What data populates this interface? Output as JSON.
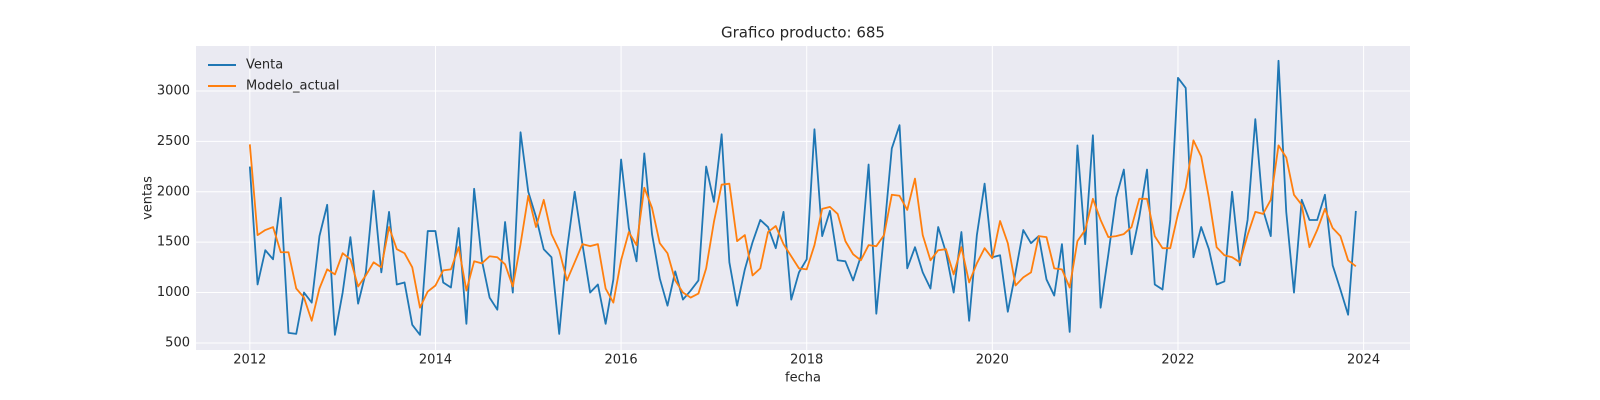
{
  "chart_data": {
    "type": "line",
    "title": "Grafico producto: 685",
    "x_label": "fecha",
    "y_label": "ventas",
    "x": [
      "2012-01",
      "2012-02",
      "2012-03",
      "2012-04",
      "2012-05",
      "2012-06",
      "2012-07",
      "2012-08",
      "2012-09",
      "2012-10",
      "2012-11",
      "2012-12",
      "2013-01",
      "2013-02",
      "2013-03",
      "2013-04",
      "2013-05",
      "2013-06",
      "2013-07",
      "2013-08",
      "2013-09",
      "2013-10",
      "2013-11",
      "2013-12",
      "2014-01",
      "2014-02",
      "2014-03",
      "2014-04",
      "2014-05",
      "2014-06",
      "2014-07",
      "2014-08",
      "2014-09",
      "2014-10",
      "2014-11",
      "2014-12",
      "2015-01",
      "2015-02",
      "2015-03",
      "2015-04",
      "2015-05",
      "2015-06",
      "2015-07",
      "2015-08",
      "2015-09",
      "2015-10",
      "2015-11",
      "2015-12",
      "2016-01",
      "2016-02",
      "2016-03",
      "2016-04",
      "2016-05",
      "2016-06",
      "2016-07",
      "2016-08",
      "2016-09",
      "2016-10",
      "2016-11",
      "2016-12",
      "2017-01",
      "2017-02",
      "2017-03",
      "2017-04",
      "2017-05",
      "2017-06",
      "2017-07",
      "2017-08",
      "2017-09",
      "2017-10",
      "2017-11",
      "2017-12",
      "2018-01",
      "2018-02",
      "2018-03",
      "2018-04",
      "2018-05",
      "2018-06",
      "2018-07",
      "2018-08",
      "2018-09",
      "2018-10",
      "2018-11",
      "2018-12",
      "2019-01",
      "2019-02",
      "2019-03",
      "2019-04",
      "2019-05",
      "2019-06",
      "2019-07",
      "2019-08",
      "2019-09",
      "2019-10",
      "2019-11",
      "2019-12",
      "2020-01",
      "2020-02",
      "2020-03",
      "2020-04",
      "2020-05",
      "2020-06",
      "2020-07",
      "2020-08",
      "2020-09",
      "2020-10",
      "2020-11",
      "2020-12",
      "2021-01",
      "2021-02",
      "2021-03",
      "2021-04",
      "2021-05",
      "2021-06",
      "2021-07",
      "2021-08",
      "2021-09",
      "2021-10",
      "2021-11",
      "2021-12",
      "2022-01",
      "2022-02",
      "2022-03",
      "2022-04",
      "2022-05",
      "2022-06",
      "2022-07",
      "2022-08",
      "2022-09",
      "2022-10",
      "2022-11",
      "2022-12",
      "2023-01",
      "2023-02",
      "2023-03",
      "2023-04",
      "2023-05",
      "2023-06",
      "2023-07",
      "2023-08",
      "2023-09",
      "2023-10",
      "2023-11",
      "2023-12"
    ],
    "series": [
      {
        "name": "Venta",
        "color": "#1f77b4",
        "values": [
          2250,
          1080,
          1420,
          1330,
          1940,
          600,
          590,
          1000,
          900,
          1560,
          1870,
          580,
          1000,
          1550,
          890,
          1200,
          2010,
          1200,
          1800,
          1080,
          1100,
          680,
          580,
          1610,
          1610,
          1100,
          1050,
          1640,
          690,
          2030,
          1320,
          950,
          830,
          1700,
          1000,
          2590,
          2000,
          1750,
          1430,
          1350,
          590,
          1420,
          2000,
          1480,
          1000,
          1080,
          690,
          1130,
          2320,
          1640,
          1310,
          2380,
          1580,
          1140,
          870,
          1210,
          930,
          1020,
          1120,
          2250,
          1900,
          2570,
          1300,
          870,
          1230,
          1500,
          1720,
          1650,
          1440,
          1800,
          930,
          1200,
          1330,
          2620,
          1560,
          1810,
          1320,
          1310,
          1120,
          1360,
          2270,
          790,
          1590,
          2430,
          2660,
          1240,
          1450,
          1200,
          1040,
          1650,
          1400,
          1000,
          1600,
          720,
          1570,
          2080,
          1350,
          1370,
          810,
          1200,
          1620,
          1490,
          1560,
          1130,
          970,
          1480,
          610,
          2460,
          1480,
          2560,
          850,
          1380,
          1940,
          2220,
          1380,
          1750,
          2220,
          1080,
          1030,
          1720,
          3130,
          3030,
          1350,
          1650,
          1430,
          1080,
          1110,
          2000,
          1270,
          1720,
          2720,
          1820,
          1560,
          3300,
          1800,
          1000,
          1920,
          1720,
          1720,
          1970,
          1270,
          1030,
          780,
          1810
        ]
      },
      {
        "name": "Modelo_actual",
        "color": "#ff7f0e",
        "values": [
          2470,
          1570,
          1620,
          1650,
          1400,
          1400,
          1040,
          950,
          720,
          1040,
          1230,
          1180,
          1390,
          1330,
          1060,
          1170,
          1300,
          1250,
          1650,
          1430,
          1390,
          1250,
          850,
          1010,
          1070,
          1220,
          1230,
          1450,
          1020,
          1310,
          1290,
          1360,
          1350,
          1280,
          1060,
          1480,
          1960,
          1650,
          1920,
          1580,
          1420,
          1120,
          1300,
          1480,
          1460,
          1480,
          1040,
          900,
          1320,
          1600,
          1470,
          2040,
          1840,
          1490,
          1390,
          1120,
          1000,
          950,
          990,
          1240,
          1700,
          2070,
          2080,
          1510,
          1570,
          1170,
          1240,
          1600,
          1660,
          1480,
          1360,
          1240,
          1230,
          1470,
          1830,
          1850,
          1780,
          1510,
          1380,
          1320,
          1470,
          1460,
          1570,
          1970,
          1960,
          1820,
          2130,
          1570,
          1320,
          1420,
          1430,
          1180,
          1450,
          1100,
          1290,
          1440,
          1340,
          1710,
          1490,
          1070,
          1150,
          1200,
          1560,
          1550,
          1240,
          1230,
          1050,
          1510,
          1620,
          1930,
          1720,
          1550,
          1560,
          1580,
          1650,
          1930,
          1930,
          1560,
          1440,
          1440,
          1780,
          2040,
          2510,
          2350,
          1940,
          1450,
          1370,
          1350,
          1300,
          1570,
          1800,
          1780,
          1920,
          2460,
          2340,
          1970,
          1870,
          1450,
          1620,
          1830,
          1640,
          1560,
          1320,
          1260
        ]
      }
    ],
    "xlim": [
      2011.42,
      2024.5
    ],
    "xticks": [
      2012,
      2014,
      2016,
      2018,
      2020,
      2022,
      2024
    ],
    "ylim": [
      430,
      3446
    ],
    "yticks": [
      500,
      1000,
      1500,
      2000,
      2500,
      3000
    ],
    "grid": true,
    "legend": "upper left"
  }
}
